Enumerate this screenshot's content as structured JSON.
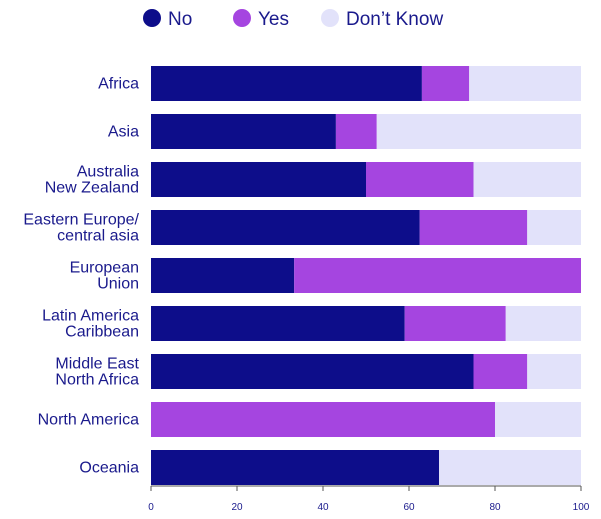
{
  "chart_data": {
    "type": "bar",
    "orientation": "horizontal",
    "stacked": true,
    "categories": [
      [
        "Africa"
      ],
      [
        "Asia"
      ],
      [
        "Australia",
        "New Zealand"
      ],
      [
        "Eastern Europe/",
        "central asia"
      ],
      [
        "European",
        "Union"
      ],
      [
        "Latin America",
        "Caribbean"
      ],
      [
        "Middle East",
        "North Africa"
      ],
      [
        "North America"
      ],
      [
        "Oceania"
      ]
    ],
    "series": [
      {
        "name": "No",
        "color": "#0d0d8a",
        "values": [
          63,
          43,
          50,
          62.5,
          33.3,
          59,
          75,
          0,
          67
        ]
      },
      {
        "name": "Yes",
        "color": "#a545e0",
        "values": [
          11,
          9.5,
          25,
          25,
          66.7,
          23.5,
          12.5,
          80,
          0
        ]
      },
      {
        "name": "Don’t Know",
        "color": "#e2e2fa",
        "values": [
          26,
          47.5,
          25,
          12.5,
          0,
          17.5,
          12.5,
          20,
          33
        ]
      }
    ],
    "xlim": [
      0,
      100
    ],
    "xticks": [
      "0",
      "20",
      "40",
      "60",
      "80",
      "100"
    ],
    "legend_position": "top",
    "grid": false
  }
}
